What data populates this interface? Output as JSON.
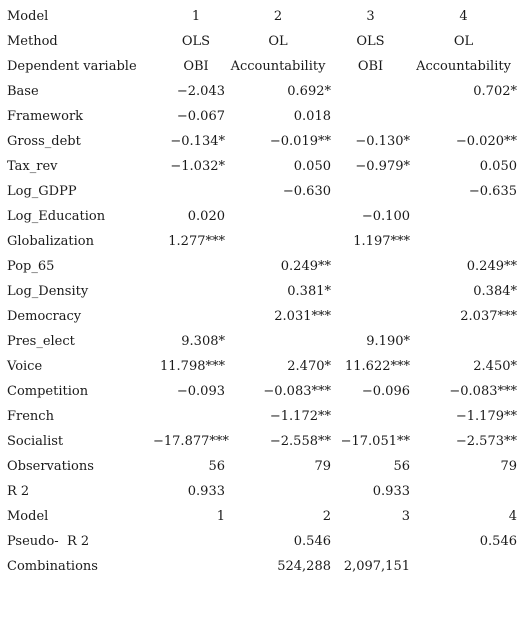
{
  "header_rows": [
    {
      "label": "Model",
      "values": [
        "1",
        "2",
        "3",
        "4"
      ]
    },
    {
      "label": "Method",
      "values": [
        "OLS",
        "OL",
        "OLS",
        "OL"
      ]
    },
    {
      "label": "Dependent variable",
      "values": [
        "OBI",
        "Accountability",
        "OBI",
        "Accountability"
      ]
    }
  ],
  "body_rows": [
    {
      "label": "Base",
      "values": [
        "−2.043",
        "0.692*",
        "",
        "0.702*"
      ]
    },
    {
      "label": "Framework",
      "values": [
        "−0.067",
        "0.018",
        "",
        ""
      ]
    },
    {
      "label": "Gross_debt",
      "values": [
        "−0.134*",
        "−0.019**",
        "−0.130*",
        "−0.020**"
      ]
    },
    {
      "label": "Tax_rev",
      "values": [
        "−1.032*",
        "0.050",
        "−0.979*",
        "0.050"
      ]
    },
    {
      "label": "Log_GDPP",
      "values": [
        "",
        "−0.630",
        "",
        "−0.635"
      ]
    },
    {
      "label": "Log_Education",
      "values": [
        "0.020",
        "",
        "−0.100",
        ""
      ]
    },
    {
      "label": "Globalization",
      "values": [
        "1.277***",
        "",
        "1.197***",
        ""
      ]
    },
    {
      "label": "Pop_65",
      "values": [
        "",
        "0.249**",
        "",
        "0.249**"
      ]
    },
    {
      "label": "Log_Density",
      "values": [
        "",
        "0.381*",
        "",
        "0.384*"
      ]
    },
    {
      "label": "Democracy",
      "values": [
        "",
        "2.031***",
        "",
        "2.037***"
      ]
    },
    {
      "label": "Pres_elect",
      "values": [
        "9.308*",
        "",
        "9.190*",
        ""
      ]
    },
    {
      "label": "Voice",
      "values": [
        "11.798***",
        "2.470*",
        "11.622***",
        "2.450*"
      ]
    },
    {
      "label": "Competition",
      "values": [
        "−0.093",
        "−0.083***",
        "−0.096",
        "−0.083***"
      ]
    },
    {
      "label": "French",
      "values": [
        "",
        "−1.172**",
        "",
        "−1.179**"
      ]
    },
    {
      "label": "Socialist",
      "values": [
        "−17.877***",
        "−2.558**",
        "−17.051**",
        "−2.573**"
      ]
    },
    {
      "label": "Observations",
      "values": [
        "56",
        "79",
        "56",
        "79"
      ]
    },
    {
      "label": "R 2",
      "values": [
        "0.933",
        "",
        "0.933",
        ""
      ]
    },
    {
      "label": "Model",
      "values": [
        "1",
        "2",
        "3",
        "4"
      ]
    },
    {
      "label": "Pseudo-  R 2",
      "values": [
        "",
        "0.546",
        "",
        "0.546"
      ]
    },
    {
      "label": "Combinations",
      "values": [
        "",
        "524,288",
        "2,097,151",
        ""
      ]
    }
  ]
}
